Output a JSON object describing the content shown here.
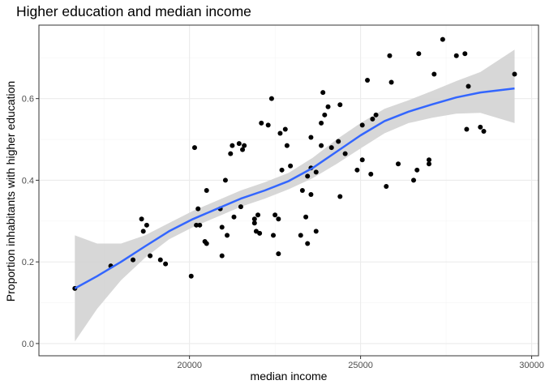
{
  "chart_data": {
    "type": "scatter",
    "title": "Higher education and median income",
    "xlabel": "median income",
    "ylabel": "Proportion inhabitants with higher education",
    "xlim": [
      15600,
      30200
    ],
    "ylim": [
      -0.03,
      0.78
    ],
    "x_ticks": [
      20000,
      25000,
      30000
    ],
    "y_ticks": [
      0.0,
      0.2,
      0.4,
      0.6
    ],
    "x_tick_labels": [
      "20000",
      "25000",
      "30000"
    ],
    "y_tick_labels": [
      "0.0",
      "0.2",
      "0.4",
      "0.6"
    ],
    "grid": true,
    "legend": "none",
    "colors": {
      "points": "#000000",
      "smooth_line": "#3366FF",
      "confidence_band": "#D3D3D3",
      "panel_border": "#333333",
      "grid_major": "#EBEBEB",
      "grid_minor": "#F5F5F5"
    },
    "points": [
      {
        "x": 16650,
        "y": 0.135
      },
      {
        "x": 17700,
        "y": 0.19
      },
      {
        "x": 18350,
        "y": 0.205
      },
      {
        "x": 18600,
        "y": 0.305
      },
      {
        "x": 18650,
        "y": 0.275
      },
      {
        "x": 18750,
        "y": 0.29
      },
      {
        "x": 18850,
        "y": 0.215
      },
      {
        "x": 19150,
        "y": 0.205
      },
      {
        "x": 19300,
        "y": 0.195
      },
      {
        "x": 20050,
        "y": 0.165
      },
      {
        "x": 20150,
        "y": 0.48
      },
      {
        "x": 20200,
        "y": 0.29
      },
      {
        "x": 20250,
        "y": 0.33
      },
      {
        "x": 20300,
        "y": 0.29
      },
      {
        "x": 20450,
        "y": 0.25
      },
      {
        "x": 20500,
        "y": 0.375
      },
      {
        "x": 20500,
        "y": 0.245
      },
      {
        "x": 20900,
        "y": 0.33
      },
      {
        "x": 20950,
        "y": 0.285
      },
      {
        "x": 20950,
        "y": 0.215
      },
      {
        "x": 21050,
        "y": 0.4
      },
      {
        "x": 21100,
        "y": 0.265
      },
      {
        "x": 21200,
        "y": 0.465
      },
      {
        "x": 21250,
        "y": 0.485
      },
      {
        "x": 21300,
        "y": 0.31
      },
      {
        "x": 21450,
        "y": 0.49
      },
      {
        "x": 21500,
        "y": 0.335
      },
      {
        "x": 21550,
        "y": 0.475
      },
      {
        "x": 21600,
        "y": 0.485
      },
      {
        "x": 21900,
        "y": 0.305
      },
      {
        "x": 21900,
        "y": 0.295
      },
      {
        "x": 21950,
        "y": 0.275
      },
      {
        "x": 22000,
        "y": 0.315
      },
      {
        "x": 22050,
        "y": 0.27
      },
      {
        "x": 22100,
        "y": 0.54
      },
      {
        "x": 22300,
        "y": 0.535
      },
      {
        "x": 22400,
        "y": 0.6
      },
      {
        "x": 22450,
        "y": 0.265
      },
      {
        "x": 22500,
        "y": 0.315
      },
      {
        "x": 22600,
        "y": 0.22
      },
      {
        "x": 22600,
        "y": 0.305
      },
      {
        "x": 22650,
        "y": 0.515
      },
      {
        "x": 22700,
        "y": 0.425
      },
      {
        "x": 22800,
        "y": 0.525
      },
      {
        "x": 22850,
        "y": 0.485
      },
      {
        "x": 22950,
        "y": 0.435
      },
      {
        "x": 23250,
        "y": 0.265
      },
      {
        "x": 23300,
        "y": 0.375
      },
      {
        "x": 23400,
        "y": 0.31
      },
      {
        "x": 23450,
        "y": 0.41
      },
      {
        "x": 23450,
        "y": 0.245
      },
      {
        "x": 23550,
        "y": 0.43
      },
      {
        "x": 23550,
        "y": 0.505
      },
      {
        "x": 23550,
        "y": 0.365
      },
      {
        "x": 23700,
        "y": 0.275
      },
      {
        "x": 23700,
        "y": 0.42
      },
      {
        "x": 23850,
        "y": 0.485
      },
      {
        "x": 23850,
        "y": 0.54
      },
      {
        "x": 23900,
        "y": 0.615
      },
      {
        "x": 23950,
        "y": 0.56
      },
      {
        "x": 24050,
        "y": 0.58
      },
      {
        "x": 24150,
        "y": 0.48
      },
      {
        "x": 24350,
        "y": 0.495
      },
      {
        "x": 24400,
        "y": 0.585
      },
      {
        "x": 24400,
        "y": 0.36
      },
      {
        "x": 24550,
        "y": 0.465
      },
      {
        "x": 24900,
        "y": 0.425
      },
      {
        "x": 25050,
        "y": 0.535
      },
      {
        "x": 25050,
        "y": 0.45
      },
      {
        "x": 25200,
        "y": 0.645
      },
      {
        "x": 25300,
        "y": 0.415
      },
      {
        "x": 25350,
        "y": 0.55
      },
      {
        "x": 25450,
        "y": 0.56
      },
      {
        "x": 25750,
        "y": 0.385
      },
      {
        "x": 25850,
        "y": 0.705
      },
      {
        "x": 25900,
        "y": 0.64
      },
      {
        "x": 26100,
        "y": 0.44
      },
      {
        "x": 26550,
        "y": 0.4
      },
      {
        "x": 26650,
        "y": 0.425
      },
      {
        "x": 26700,
        "y": 0.71
      },
      {
        "x": 27000,
        "y": 0.45
      },
      {
        "x": 27000,
        "y": 0.44
      },
      {
        "x": 27150,
        "y": 0.66
      },
      {
        "x": 27400,
        "y": 0.745
      },
      {
        "x": 27800,
        "y": 0.705
      },
      {
        "x": 28050,
        "y": 0.71
      },
      {
        "x": 28100,
        "y": 0.525
      },
      {
        "x": 28150,
        "y": 0.63
      },
      {
        "x": 28500,
        "y": 0.53
      },
      {
        "x": 28600,
        "y": 0.52
      },
      {
        "x": 29500,
        "y": 0.66
      }
    ],
    "smooth_line": {
      "x": [
        16650,
        17300,
        18000,
        18700,
        19400,
        20100,
        20800,
        21500,
        22200,
        22900,
        23600,
        24300,
        25000,
        25700,
        26400,
        27100,
        27800,
        28500,
        29500
      ],
      "y": [
        0.135,
        0.165,
        0.2,
        0.238,
        0.275,
        0.305,
        0.33,
        0.355,
        0.375,
        0.398,
        0.43,
        0.47,
        0.51,
        0.545,
        0.568,
        0.586,
        0.603,
        0.615,
        0.625
      ]
    },
    "confidence_band": {
      "x": [
        16650,
        17300,
        18000,
        18700,
        19400,
        20100,
        20800,
        21500,
        22200,
        22900,
        23600,
        24300,
        25000,
        25700,
        26400,
        27100,
        27800,
        28500,
        29500
      ],
      "lower": [
        0.005,
        0.085,
        0.155,
        0.21,
        0.255,
        0.285,
        0.31,
        0.335,
        0.355,
        0.378,
        0.405,
        0.44,
        0.478,
        0.515,
        0.54,
        0.553,
        0.563,
        0.565,
        0.54
      ],
      "upper": [
        0.265,
        0.245,
        0.245,
        0.265,
        0.295,
        0.325,
        0.35,
        0.375,
        0.395,
        0.418,
        0.455,
        0.5,
        0.54,
        0.575,
        0.596,
        0.619,
        0.643,
        0.665,
        0.72
      ]
    }
  }
}
